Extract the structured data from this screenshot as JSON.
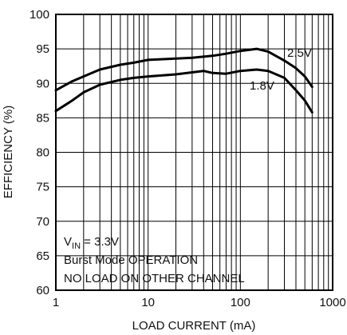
{
  "chart_data": {
    "type": "line",
    "xlabel": "LOAD CURRENT (mA)",
    "ylabel": "EFFICIENCY (%)",
    "xscale": "log",
    "xlim": [
      1,
      1000
    ],
    "ylim": [
      60,
      100
    ],
    "grid": true,
    "x_ticks": [
      "1",
      "10",
      "100",
      "1000"
    ],
    "y_ticks": [
      "60",
      "65",
      "70",
      "75",
      "80",
      "85",
      "90",
      "95",
      "100"
    ],
    "series": [
      {
        "name": "2.5V",
        "x": [
          1,
          1.5,
          2,
          3,
          5,
          7,
          10,
          20,
          30,
          50,
          70,
          100,
          150,
          200,
          300,
          400,
          500,
          600
        ],
        "y": [
          89.0,
          90.3,
          91.0,
          92.0,
          92.7,
          93.0,
          93.4,
          93.6,
          93.7,
          94.0,
          94.3,
          94.7,
          95.0,
          94.6,
          93.3,
          92.2,
          91.0,
          89.5
        ]
      },
      {
        "name": "1.8V",
        "x": [
          1,
          1.5,
          2,
          3,
          5,
          7,
          10,
          20,
          30,
          40,
          50,
          70,
          100,
          150,
          200,
          300,
          400,
          500,
          600
        ],
        "y": [
          86.0,
          87.5,
          88.7,
          89.8,
          90.5,
          90.8,
          91.0,
          91.3,
          91.6,
          91.8,
          91.5,
          91.4,
          91.8,
          92.0,
          91.8,
          90.8,
          89.0,
          87.5,
          85.8
        ]
      }
    ],
    "annotations": {
      "vin_prefix": "V",
      "vin_subscript": "IN",
      "vin_value": " = 3.3V",
      "line2": "Burst Mode OPERATION",
      "line3": "NO LOAD ON OTHER CHANNEL"
    }
  }
}
